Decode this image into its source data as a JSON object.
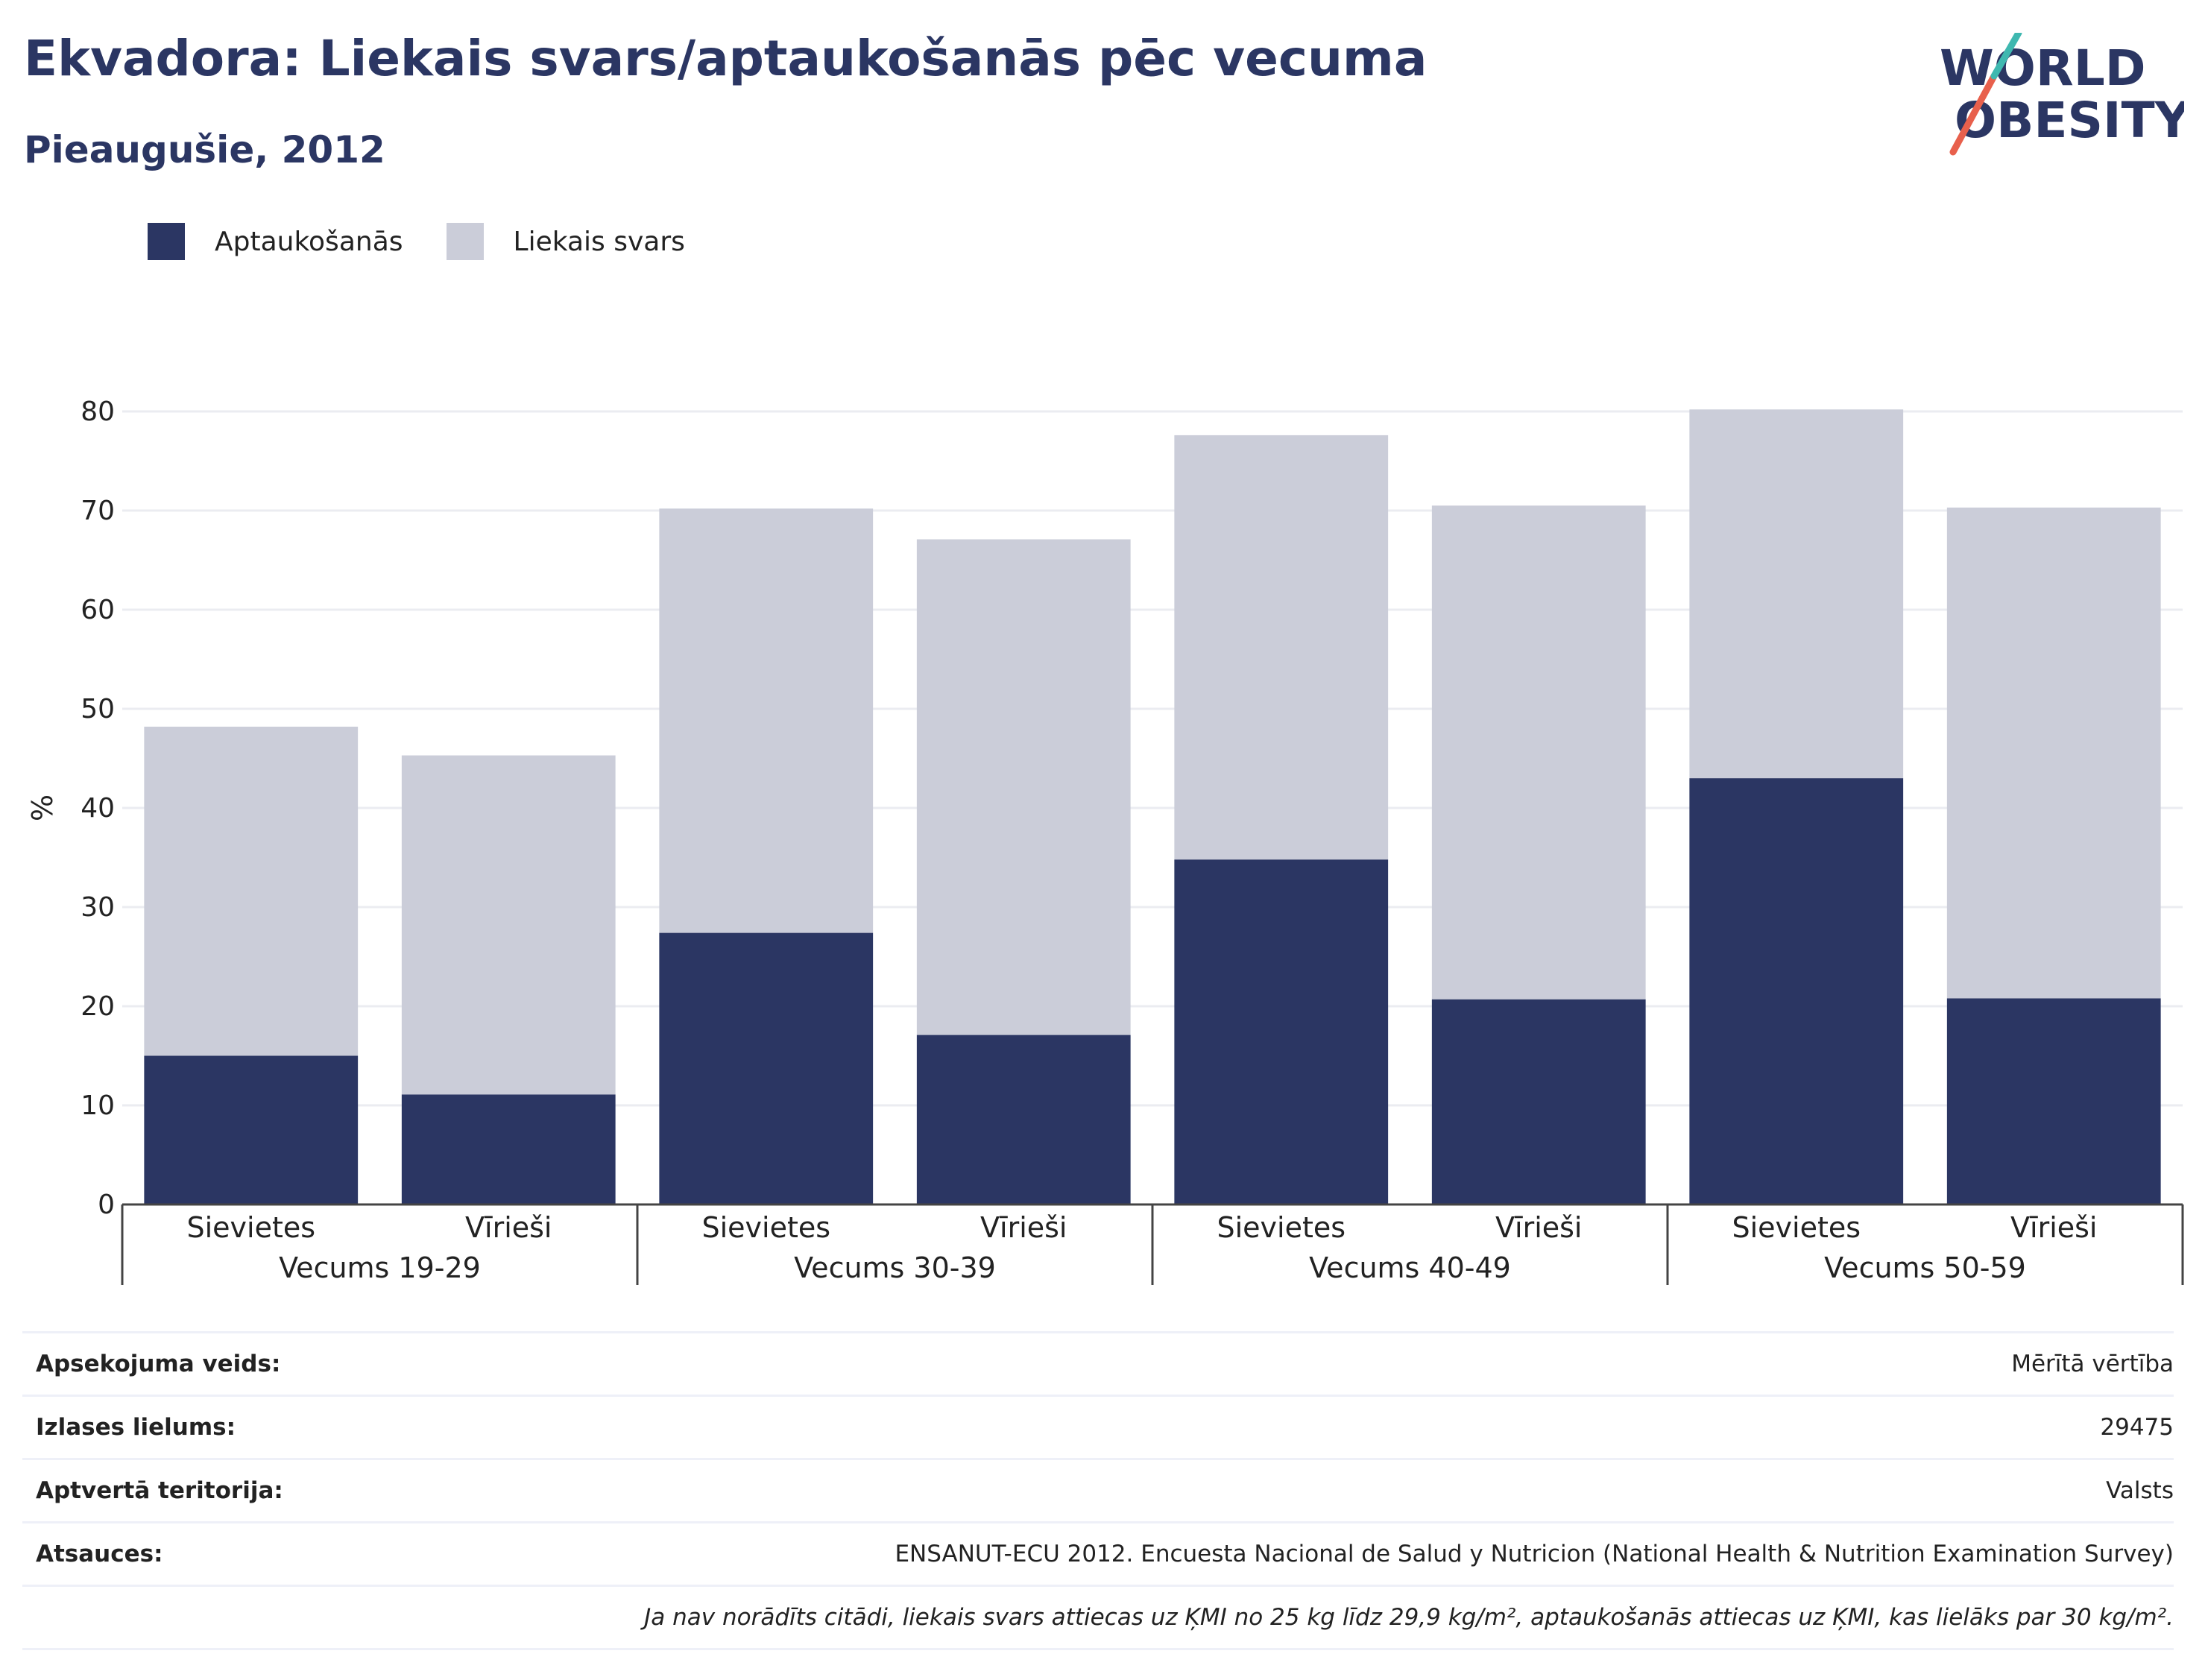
{
  "header": {
    "title": "Ekvadora: Liekais svars/aptaukošanās pēc vecuma",
    "subtitle": "Pieaugušie, 2012"
  },
  "logo": {
    "line1": "WORLD",
    "line2": "OBESITY"
  },
  "colors": {
    "obesity": "#2b3663",
    "overweight": "#cbcdd9",
    "accent_teal": "#3fb8b0",
    "accent_red": "#e8604c"
  },
  "chart_data": {
    "type": "bar",
    "stacked": true,
    "ylabel": "%",
    "ylim": [
      0,
      80
    ],
    "yticks": [
      0,
      10,
      20,
      30,
      40,
      50,
      60,
      70,
      80
    ],
    "grid": true,
    "legend_position": "top-left",
    "categories": [
      "Sievietes",
      "Vīrieši",
      "Sievietes",
      "Vīrieši",
      "Sievietes",
      "Vīrieši",
      "Sievietes",
      "Vīrieši"
    ],
    "groups": [
      "Vecums 19-29",
      "Vecums 30-39",
      "Vecums 40-49",
      "Vecums 50-59"
    ],
    "series": [
      {
        "name": "Aptaukošanās",
        "values": [
          15.0,
          11.1,
          27.4,
          17.1,
          34.8,
          20.7,
          43.0,
          20.8
        ]
      },
      {
        "name": "Liekais svars",
        "values": [
          33.2,
          34.2,
          42.8,
          50.0,
          42.8,
          49.8,
          37.2,
          49.5
        ]
      }
    ]
  },
  "info": {
    "rows": [
      {
        "label": "Apsekojuma veids:",
        "value": "Mērītā vērtība"
      },
      {
        "label": "Izlases lielums:",
        "value": "29475"
      },
      {
        "label": "Aptvertā teritorija:",
        "value": "Valsts"
      },
      {
        "label": "Atsauces:",
        "value": "ENSANUT-ECU 2012. Encuesta Nacional de Salud y Nutricion (National Health & Nutrition Examination Survey)"
      }
    ],
    "note": "Ja nav norādīts citādi, liekais svars attiecas uz ĶMI no 25 kg līdz 29,9 kg/m², aptaukošanās attiecas uz ĶMI, kas lielāks par 30 kg/m²."
  }
}
